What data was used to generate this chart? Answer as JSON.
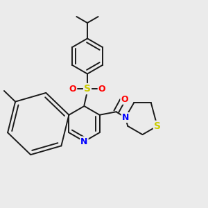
{
  "background_color": "#ebebeb",
  "bond_color": "#1a1a1a",
  "n_color": "#0000ff",
  "s_color": "#cccc00",
  "o_color": "#ff0000",
  "line_width": 1.4,
  "figsize": [
    3.0,
    3.0
  ],
  "dpi": 100,
  "xlim": [
    0,
    10
  ],
  "ylim": [
    0,
    10
  ]
}
